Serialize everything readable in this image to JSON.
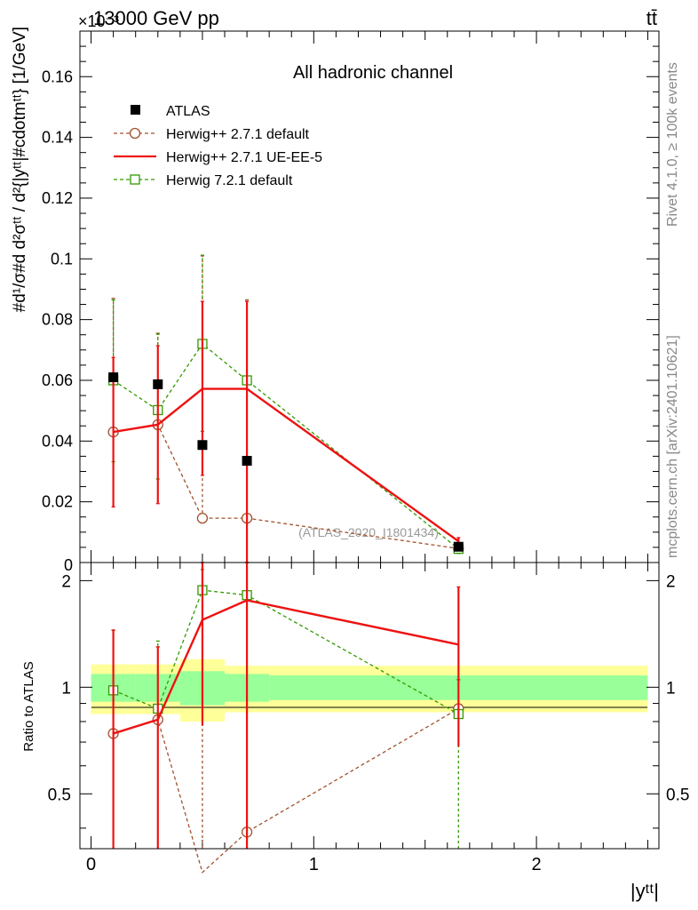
{
  "header": {
    "left": "13000 GeV pp",
    "right": "tt̄",
    "exponent": "×10⁻³"
  },
  "sidebar": {
    "rivet": "Rivet 4.1.0, ≥ 100k events",
    "site": "mcplots.cern.ch [arXiv:2401.10621]"
  },
  "colors": {
    "atlas": "#000000",
    "h271_default": "#a0522d",
    "h271_ueee5": "#ee1111",
    "h721_default": "#339900",
    "band_inner": "#99ff99",
    "band_outer": "#ffff99"
  },
  "chart_data": [
    {
      "type": "scatter",
      "title": "All hadronic channel",
      "watermark": "(ATLAS_2020_I1801434)",
      "ylabel": "#d¹/σ#d d²σᵗᵗ / d²{|yᵗᵗ|#cdotmᵗᵗ} [1/GeV]",
      "ylim": [
        0,
        0.175
      ],
      "xlim": [
        -0.05,
        2.55
      ],
      "yticks": [
        0.02,
        0.04,
        0.06,
        0.08,
        0.1,
        0.12,
        0.14,
        0.16
      ],
      "ytick_labels": [
        "0.02",
        "0.04",
        "0.06",
        "0.08",
        "0.1",
        "0.12",
        "0.14",
        "0.16"
      ],
      "bottom_tick_label": "0",
      "legend": {
        "position": "top-left",
        "entries": [
          "ATLAS",
          "Herwig++ 2.7.1 default",
          "Herwig++ 2.7.1 UE-EE-5",
          "Herwig 7.2.1 default"
        ]
      },
      "series": [
        {
          "name": "ATLAS",
          "x": [
            0.1,
            0.3,
            0.5,
            0.7,
            1.65
          ],
          "y": [
            0.061,
            0.0587,
            0.0387,
            0.0335,
            0.0052
          ]
        },
        {
          "name": "Herwig++ 2.7.1 default",
          "x": [
            0.1,
            0.3,
            0.5,
            0.7,
            1.65
          ],
          "y": [
            0.043,
            0.0454,
            0.0146,
            0.0146,
            0.0046
          ],
          "yerr_low": [
            0.043,
            0.0454,
            0.0146,
            0.0146,
            0.0046
          ],
          "yerr_high": [
            0.087,
            0.0755,
            0.101,
            0.0865,
            0.0065
          ]
        },
        {
          "name": "Herwig++ 2.7.1 UE-EE-5",
          "x": [
            0.1,
            0.3,
            0.5,
            0.7,
            1.65
          ],
          "y": [
            0.043,
            0.0454,
            0.0572,
            0.0572,
            0.007
          ],
          "yerr_low": [
            0.0183,
            0.0194,
            0.0287,
            0.0,
            0.0046
          ],
          "yerr_high": [
            0.0675,
            0.0714,
            0.086,
            0.086,
            0.0082
          ]
        },
        {
          "name": "Herwig 7.2.1 default",
          "x": [
            0.1,
            0.3,
            0.5,
            0.7,
            1.65
          ],
          "y": [
            0.06,
            0.0502,
            0.072,
            0.06,
            0.0045
          ],
          "yerr_low": [
            0.0332,
            0.0275,
            0.0432,
            0.0,
            0.0033
          ],
          "yerr_high": [
            0.0865,
            0.0752,
            0.1012,
            0.086,
            0.0058
          ]
        }
      ]
    },
    {
      "type": "line",
      "title": "Ratio to ATLAS",
      "xlabel": "|yᵗᵗ|",
      "ylabel": "Ratio to ATLAS",
      "xlim": [
        -0.05,
        2.55
      ],
      "ylim": [
        0.35,
        2.25
      ],
      "xticks": [
        0,
        1,
        2
      ],
      "xtick_labels": [
        "0",
        "1",
        "2"
      ],
      "yticks": [
        0.5,
        1,
        2
      ],
      "ytick_labels": [
        "0.5",
        "1",
        "2"
      ],
      "bands": [
        {
          "x0": 0.0,
          "x1": 0.2,
          "inner": [
            0.91,
            1.09
          ],
          "outer": [
            0.84,
            1.16
          ]
        },
        {
          "x0": 0.2,
          "x1": 0.4,
          "inner": [
            0.91,
            1.09
          ],
          "outer": [
            0.84,
            1.16
          ]
        },
        {
          "x0": 0.4,
          "x1": 0.6,
          "inner": [
            0.89,
            1.11
          ],
          "outer": [
            0.8,
            1.2
          ]
        },
        {
          "x0": 0.6,
          "x1": 0.8,
          "inner": [
            0.91,
            1.09
          ],
          "outer": [
            0.85,
            1.15
          ]
        },
        {
          "x0": 0.8,
          "x1": 2.5,
          "inner": [
            0.92,
            1.08
          ],
          "outer": [
            0.85,
            1.15
          ]
        }
      ],
      "series": [
        {
          "name": "Herwig++ 2.7.1 default",
          "x": [
            0.1,
            0.3,
            0.5,
            0.7,
            1.65
          ],
          "y": [
            0.74,
            0.81,
            0.3,
            0.39,
            0.87
          ],
          "yerr_low": [
            0.3,
            0.3,
            0.3,
            0.3,
            0.68
          ],
          "yerr_high": [
            1.45,
            1.3,
            2.25,
            2.25,
            1.05
          ]
        },
        {
          "name": "Herwig++ 2.7.1 UE-EE-5",
          "x": [
            0.1,
            0.3,
            0.5,
            0.7,
            1.65
          ],
          "y": [
            0.74,
            0.81,
            1.55,
            1.76,
            1.32
          ],
          "yerr_low": [
            0.3,
            0.3,
            0.78,
            0.3,
            0.68
          ],
          "yerr_high": [
            1.45,
            1.3,
            2.25,
            2.25,
            1.92
          ]
        },
        {
          "name": "Herwig 7.2.1 default",
          "x": [
            0.1,
            0.3,
            0.5,
            0.7,
            1.65
          ],
          "y": [
            0.98,
            0.87,
            1.88,
            1.82,
            0.84
          ],
          "yerr_low": [
            0.55,
            0.3,
            0.78,
            0.3,
            0.3
          ],
          "yerr_high": [
            1.45,
            1.35,
            2.15,
            2.25,
            1.05
          ]
        }
      ]
    }
  ]
}
